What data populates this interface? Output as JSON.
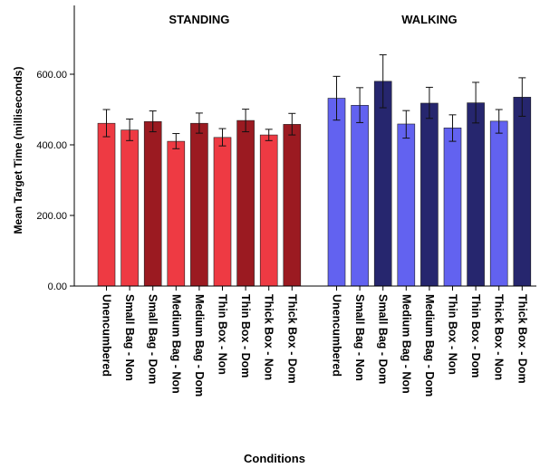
{
  "chart_data": {
    "type": "bar",
    "xlabel": "Conditions",
    "ylabel": "Mean Target Time (milliseconds)",
    "ylim": [
      0,
      760
    ],
    "yticks": [
      0,
      200,
      400,
      600
    ],
    "ytick_labels": [
      "0.00",
      "200.00",
      "400.00",
      "600.00"
    ],
    "grid": false,
    "error_bars": true,
    "categories": [
      "Unencumbered",
      "Small Bag - Non",
      "Small Bag - Dom",
      "Medium Bag - Non",
      "Medium Bag - Dom",
      "Thin Box - Non",
      "Thin Box - Dom",
      "Thick Box - Non",
      "Thick Box - Dom"
    ],
    "groups": [
      {
        "name": "STANDING",
        "colors": [
          "#ee3a43",
          "#ee3a43",
          "#9b1a21",
          "#ee3a43",
          "#9b1a21",
          "#ee3a43",
          "#9b1a21",
          "#ee3a43",
          "#9b1a21"
        ],
        "values": [
          461,
          442,
          466,
          410,
          461,
          421,
          469,
          428,
          458
        ],
        "err_low": [
          423,
          412,
          437,
          389,
          433,
          397,
          437,
          412,
          428
        ],
        "err_high": [
          500,
          473,
          496,
          432,
          490,
          446,
          501,
          444,
          489
        ]
      },
      {
        "name": "WALKING",
        "colors": [
          "#6262f0",
          "#6262f0",
          "#26266e",
          "#6262f0",
          "#26266e",
          "#6262f0",
          "#26266e",
          "#6262f0",
          "#26266e"
        ],
        "values": [
          532,
          512,
          580,
          459,
          518,
          448,
          519,
          467,
          535
        ],
        "err_low": [
          470,
          463,
          505,
          419,
          475,
          410,
          462,
          433,
          481
        ],
        "err_high": [
          594,
          562,
          655,
          497,
          563,
          485,
          577,
          500,
          590
        ]
      }
    ]
  }
}
